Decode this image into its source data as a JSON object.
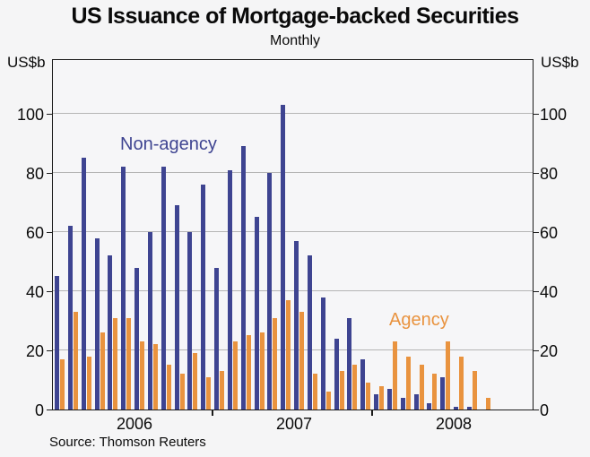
{
  "header": {
    "title": "US Issuance of Mortgage-backed Securities",
    "subtitle": "Monthly"
  },
  "axes": {
    "unit_left": "US$b",
    "unit_right": "US$b",
    "yticks": [
      0,
      20,
      40,
      60,
      80,
      100
    ],
    "year_labels": [
      "2006",
      "2007",
      "2008"
    ]
  },
  "footer": {
    "source": "Source: Thomson Reuters"
  },
  "colors": {
    "non_agency": "#3e4491",
    "agency": "#e9933f",
    "gridline": "#b5b5b5",
    "frame": "#1a1a1a",
    "background": "#f5f5f6"
  },
  "chart_data": {
    "type": "bar",
    "title": "US Issuance of Mortgage-backed Securities",
    "subtitle": "Monthly",
    "ylabel": "US$b",
    "ylim": [
      0,
      120
    ],
    "yticks": [
      0,
      20,
      40,
      60,
      80,
      100
    ],
    "grid": "horizontal",
    "axis_months_total": 36,
    "axis_span": "Jan 2006 - Dec 2008",
    "months": [
      "Jan 2006",
      "Feb 2006",
      "Mar 2006",
      "Apr 2006",
      "May 2006",
      "Jun 2006",
      "Jul 2006",
      "Aug 2006",
      "Sep 2006",
      "Oct 2006",
      "Nov 2006",
      "Dec 2006",
      "Jan 2007",
      "Feb 2007",
      "Mar 2007",
      "Apr 2007",
      "May 2007",
      "Jun 2007",
      "Jul 2007",
      "Aug 2007",
      "Sep 2007",
      "Oct 2007",
      "Nov 2007",
      "Dec 2007",
      "Jan 2008",
      "Feb 2008",
      "Mar 2008",
      "Apr 2008",
      "May 2008",
      "Jun 2008",
      "Jul 2008",
      "Aug 2008",
      "Sep 2008"
    ],
    "series": [
      {
        "name": "Non-agency",
        "color": "#3e4491",
        "values": [
          45,
          62,
          85,
          58,
          52,
          82,
          48,
          60,
          82,
          69,
          60,
          76,
          48,
          81,
          89,
          65,
          80,
          103,
          57,
          52,
          38,
          24,
          31,
          17,
          5,
          7,
          4,
          5,
          2,
          11,
          1,
          1,
          0
        ]
      },
      {
        "name": "Agency",
        "color": "#e9933f",
        "values": [
          17,
          33,
          18,
          26,
          31,
          31,
          23,
          22,
          15,
          12,
          19,
          11,
          13,
          23,
          25,
          26,
          31,
          37,
          33,
          12,
          6,
          13,
          15,
          9,
          8,
          23,
          18,
          15,
          12,
          23,
          18,
          13,
          4
        ]
      }
    ],
    "source": "Source: Thomson Reuters"
  }
}
